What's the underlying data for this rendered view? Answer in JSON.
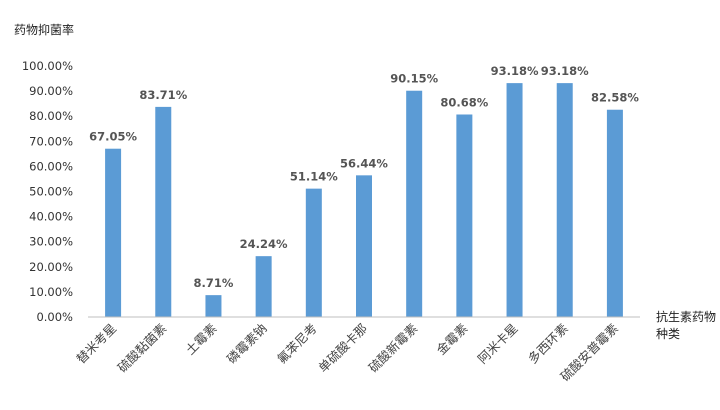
{
  "chart_data": {
    "type": "bar",
    "ylabel": "药物抑菌率",
    "xlabel_lines": [
      "抗生素药物",
      "种类"
    ],
    "categories": [
      "替米考星",
      "硫酸黏菌素",
      "土霉素",
      "磷霉素钠",
      "氟苯尼考",
      "单硫酸卡那",
      "硫酸新霉素",
      "金霉素",
      "阿米卡星",
      "多西环素",
      "硫酸安普霉素"
    ],
    "values": [
      67.05,
      83.71,
      8.71,
      24.24,
      51.14,
      56.44,
      90.15,
      80.68,
      93.18,
      93.18,
      82.58
    ],
    "data_labels": [
      "67.05%",
      "83.71%",
      "8.71%",
      "24.24%",
      "51.14%",
      "56.44%",
      "90.15%",
      "80.68%",
      "93.18%",
      "93.18%",
      "82.58%"
    ],
    "yticks": [
      "0.00%",
      "10.00%",
      "20.00%",
      "30.00%",
      "40.00%",
      "50.00%",
      "60.00%",
      "70.00%",
      "80.00%",
      "90.00%",
      "100.00%"
    ],
    "ylim": [
      0,
      100
    ],
    "bar_color": "#5B9BD5",
    "grid": false,
    "legend": "none"
  }
}
